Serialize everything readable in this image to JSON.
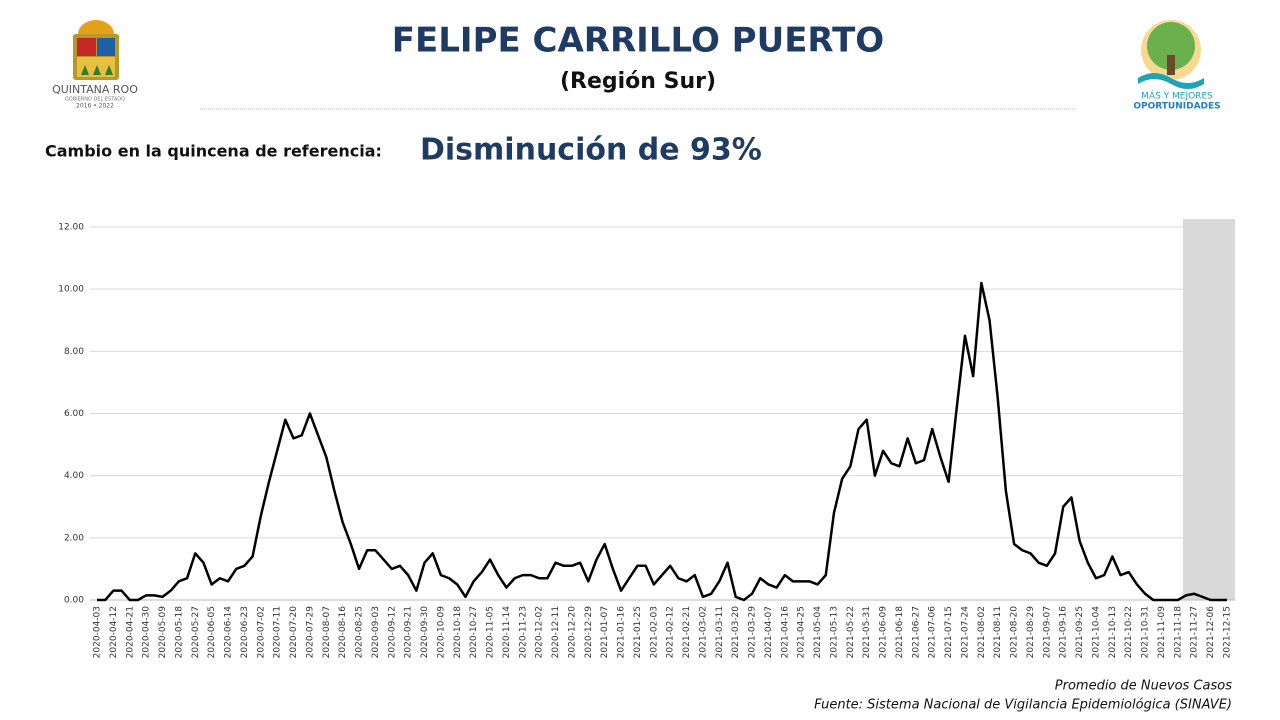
{
  "header": {
    "left_logo": [
      "QUINTANA ROO",
      "GOBIERNO DEL ESTADO",
      "2016 • 2022"
    ],
    "right_logo": [
      "MÁS Y MEJORES",
      "OPORTUNIDADES"
    ]
  },
  "chart_data": {
    "type": "line",
    "title": "FELIPE CARRILLO PUERTO",
    "subtitle": "(Región Sur)",
    "annotation_label": "Cambio en la quincena de referencia:",
    "annotation": "Disminución de 93%",
    "categories": [
      "2020-04-03",
      null,
      "2020-04-12",
      null,
      "2020-04-21",
      null,
      "2020-04-30",
      null,
      "2020-05-09",
      null,
      "2020-05-18",
      null,
      "2020-05-27",
      null,
      "2020-06-05",
      null,
      "2020-06-14",
      null,
      "2020-06-23",
      null,
      "2020-07-02",
      null,
      "2020-07-11",
      null,
      "2020-07-20",
      null,
      "2020-07-29",
      null,
      "2020-08-07",
      null,
      "2020-08-16",
      null,
      "2020-08-25",
      null,
      "2020-09-03",
      null,
      "2020-09-12",
      null,
      "2020-09-21",
      null,
      "2020-09-30",
      null,
      "2020-10-09",
      null,
      "2020-10-18",
      null,
      "2020-10-27",
      null,
      "2020-11-05",
      null,
      "2020-11-14",
      null,
      "2020-11-23",
      null,
      "2020-12-02",
      null,
      "2020-12-11",
      null,
      "2020-12-20",
      null,
      "2020-12-29",
      null,
      "2021-01-07",
      null,
      "2021-01-16",
      null,
      "2021-01-25",
      null,
      "2021-02-03",
      null,
      "2021-02-12",
      null,
      "2021-02-21",
      null,
      "2021-03-02",
      null,
      "2021-03-11",
      null,
      "2021-03-20",
      null,
      "2021-03-29",
      null,
      "2021-04-07",
      null,
      "2021-04-16",
      null,
      "2021-04-25",
      null,
      "2021-05-04",
      null,
      "2021-05-13",
      null,
      "2021-05-22",
      null,
      "2021-05-31",
      null,
      "2021-06-09",
      null,
      "2021-06-18",
      null,
      "2021-06-27",
      null,
      "2021-07-06",
      null,
      "2021-07-15",
      null,
      "2021-07-24",
      null,
      "2021-08-02",
      null,
      "2021-08-11",
      null,
      "2021-08-20",
      null,
      "2021-08-29",
      null,
      "2021-09-07",
      null,
      "2021-09-16",
      null,
      "2021-09-25",
      null,
      "2021-10-04",
      null,
      "2021-10-13",
      null,
      "2021-10-22",
      null,
      "2021-10-31",
      null,
      "2021-11-09",
      null,
      "2021-11-18",
      null,
      "2021-11-27",
      null,
      "2021-12-06",
      null,
      "2021-12-15"
    ],
    "series": [
      {
        "color": "#000000",
        "values": [
          0,
          0,
          0.3,
          0.3,
          0,
          0,
          0.15,
          0.15,
          0.1,
          0.3,
          0.6,
          0.7,
          1.5,
          1.2,
          0.5,
          0.7,
          0.6,
          1.0,
          1.1,
          1.4,
          2.7,
          3.8,
          4.8,
          5.8,
          5.2,
          5.3,
          6.0,
          5.3,
          4.6,
          3.5,
          2.5,
          1.8,
          1.0,
          1.6,
          1.6,
          1.3,
          1.0,
          1.1,
          0.8,
          0.3,
          1.2,
          1.5,
          0.8,
          0.7,
          0.5,
          0.1,
          0.6,
          0.9,
          1.3,
          0.8,
          0.4,
          0.7,
          0.8,
          0.8,
          0.7,
          0.7,
          1.2,
          1.1,
          1.1,
          1.2,
          0.6,
          1.3,
          1.8,
          1.0,
          0.3,
          0.7,
          1.1,
          1.1,
          0.5,
          0.8,
          1.1,
          0.7,
          0.6,
          0.8,
          0.1,
          0.2,
          0.6,
          1.2,
          0.1,
          0,
          0.2,
          0.7,
          0.5,
          0.4,
          0.8,
          0.6,
          0.6,
          0.6,
          0.5,
          0.8,
          2.8,
          3.9,
          4.3,
          5.5,
          5.8,
          4.0,
          4.8,
          4.4,
          4.3,
          5.2,
          4.4,
          4.5,
          5.5,
          4.6,
          3.8,
          6.2,
          8.5,
          7.2,
          10.2,
          9.0,
          6.5,
          3.5,
          1.8,
          1.6,
          1.5,
          1.2,
          1.1,
          1.5,
          3.0,
          3.3,
          1.9,
          1.2,
          0.7,
          0.8,
          1.4,
          0.8,
          0.9,
          0.5,
          0.2,
          0,
          0,
          0,
          0,
          0.15,
          0.2,
          0.1,
          0,
          0,
          0
        ]
      }
    ],
    "ylim": [
      0,
      12
    ],
    "yticks": [
      {
        "value": 0,
        "label": "0.00"
      },
      {
        "value": 2,
        "label": "2.00"
      },
      {
        "value": 4,
        "label": "4.00"
      },
      {
        "value": 6,
        "label": "6.00"
      },
      {
        "value": 8,
        "label": "8.00"
      },
      {
        "value": 10,
        "label": "10.00"
      },
      {
        "value": 12,
        "label": "12.00"
      }
    ],
    "grid": true
  },
  "footer": {
    "legend": "Promedio de Nuevos Casos",
    "source": "Fuente: Sistema Nacional de Vigilancia Epidemiológica (SINAVE)"
  }
}
